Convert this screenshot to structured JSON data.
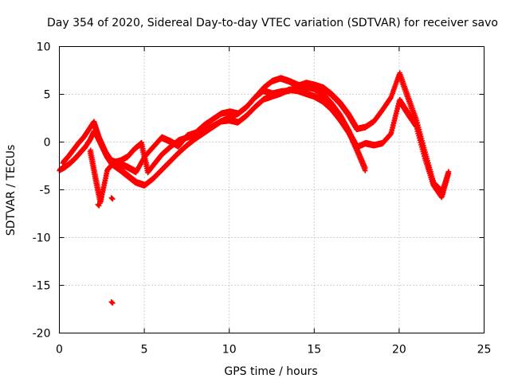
{
  "chart_data": {
    "type": "scatter",
    "title": "Day 354 of 2020, Sidereal Day-to-day VTEC variation (SDTVAR) for receiver savo",
    "xlabel": "GPS time / hours",
    "ylabel": "SDTVAR / TECUs",
    "xlim": [
      0,
      25
    ],
    "ylim": [
      -20,
      10
    ],
    "xticks": [
      0,
      5,
      10,
      15,
      20,
      25
    ],
    "yticks": [
      -20,
      -15,
      -10,
      -5,
      0,
      5,
      10
    ],
    "xtick_labels": [
      "0",
      "5",
      "10",
      "15",
      "20",
      "25"
    ],
    "ytick_labels": [
      "-20",
      "-15",
      "-10",
      "-5",
      "0",
      "5",
      "10"
    ],
    "grid": true,
    "marker": "+",
    "color": "#ff0000",
    "series": [
      {
        "name": "track-1",
        "x": [
          0.0,
          0.3,
          0.6,
          0.9,
          1.2,
          1.5,
          1.8,
          2.0,
          2.2,
          2.5,
          2.8,
          3.1,
          3.5,
          4.0,
          4.5,
          5.0,
          5.5,
          6.0,
          6.5,
          7.0,
          7.5,
          8.0,
          8.5,
          9.0,
          9.5,
          10.0,
          10.5,
          11.0,
          11.5,
          12.0,
          12.5,
          13.0,
          13.5,
          14.0,
          14.5,
          15.0,
          15.5,
          16.0,
          16.5,
          17.0,
          17.5,
          18.0
        ],
        "y": [
          -3.0,
          -2.7,
          -2.3,
          -1.8,
          -1.2,
          -0.6,
          0.2,
          1.0,
          0.6,
          -0.5,
          -1.6,
          -2.4,
          -2.9,
          -3.6,
          -4.3,
          -4.6,
          -3.9,
          -3.0,
          -2.1,
          -1.2,
          -0.4,
          0.3,
          0.9,
          1.5,
          2.1,
          2.5,
          2.9,
          3.6,
          4.6,
          5.6,
          6.3,
          6.6,
          6.3,
          5.9,
          5.7,
          5.5,
          4.9,
          3.9,
          2.7,
          1.1,
          -0.9,
          -3.0
        ]
      },
      {
        "name": "track-2",
        "x": [
          0.2,
          0.5,
          0.8,
          1.1,
          1.4,
          1.7,
          2.0,
          2.3,
          2.7,
          3.0,
          3.5,
          4.0,
          4.5,
          5.0,
          5.5,
          6.0,
          6.5,
          7.0,
          7.5,
          8.0,
          8.5,
          9.0,
          9.5,
          10.0,
          10.5,
          11.0,
          11.5,
          12.0,
          12.5,
          13.0,
          13.5,
          14.0,
          14.5,
          15.0,
          15.5,
          16.0,
          16.5,
          17.0,
          17.5,
          18.0,
          18.5,
          19.0,
          19.5,
          20.0,
          20.5,
          21.0,
          21.5,
          22.0,
          22.5,
          22.9
        ],
        "y": [
          -2.2,
          -1.6,
          -0.9,
          -0.2,
          0.4,
          1.2,
          2.0,
          0.4,
          -1.2,
          -2.0,
          -2.3,
          -2.7,
          -3.2,
          -1.6,
          -0.6,
          0.4,
          0.0,
          -0.5,
          0.6,
          0.9,
          1.7,
          2.3,
          2.9,
          3.1,
          2.9,
          3.6,
          4.6,
          5.3,
          5.0,
          5.2,
          5.3,
          5.8,
          6.1,
          5.9,
          5.6,
          4.9,
          4.0,
          2.8,
          1.3,
          1.5,
          2.1,
          3.3,
          4.6,
          7.1,
          4.6,
          2.1,
          -1.2,
          -4.4,
          -5.3,
          -3.1
        ]
      },
      {
        "name": "track-3",
        "x": [
          1.8,
          2.1,
          2.4,
          2.8,
          3.2,
          3.6,
          4.0,
          4.4,
          4.8,
          5.2,
          5.6,
          6.0,
          6.5,
          7.0,
          7.5,
          8.0,
          8.5,
          9.0,
          9.5,
          10.0,
          10.5,
          11.0,
          11.5,
          12.0,
          12.5,
          13.0,
          13.5,
          14.0,
          14.5,
          15.0,
          15.5,
          16.0,
          16.5,
          17.0,
          17.5,
          18.0,
          18.5,
          19.0,
          19.5,
          20.0,
          20.5,
          21.0,
          21.5,
          22.0,
          22.5,
          22.9
        ],
        "y": [
          -1.0,
          -3.8,
          -6.4,
          -3.0,
          -2.2,
          -2.0,
          -1.6,
          -0.8,
          -0.2,
          -3.2,
          -2.3,
          -1.4,
          -0.6,
          0.1,
          0.4,
          0.7,
          1.1,
          1.6,
          2.1,
          2.2,
          2.0,
          2.7,
          3.6,
          4.4,
          4.7,
          5.0,
          5.4,
          5.3,
          5.0,
          4.7,
          4.2,
          3.4,
          2.3,
          1.0,
          -0.6,
          -0.2,
          -0.4,
          -0.2,
          0.8,
          4.3,
          2.9,
          1.6,
          -1.7,
          -4.5,
          -5.8,
          -3.3
        ]
      },
      {
        "name": "outliers",
        "x": [
          3.1,
          3.1,
          2.3,
          2.4
        ],
        "y": [
          -16.8,
          -5.9,
          -6.6,
          -5.6
        ]
      }
    ]
  }
}
